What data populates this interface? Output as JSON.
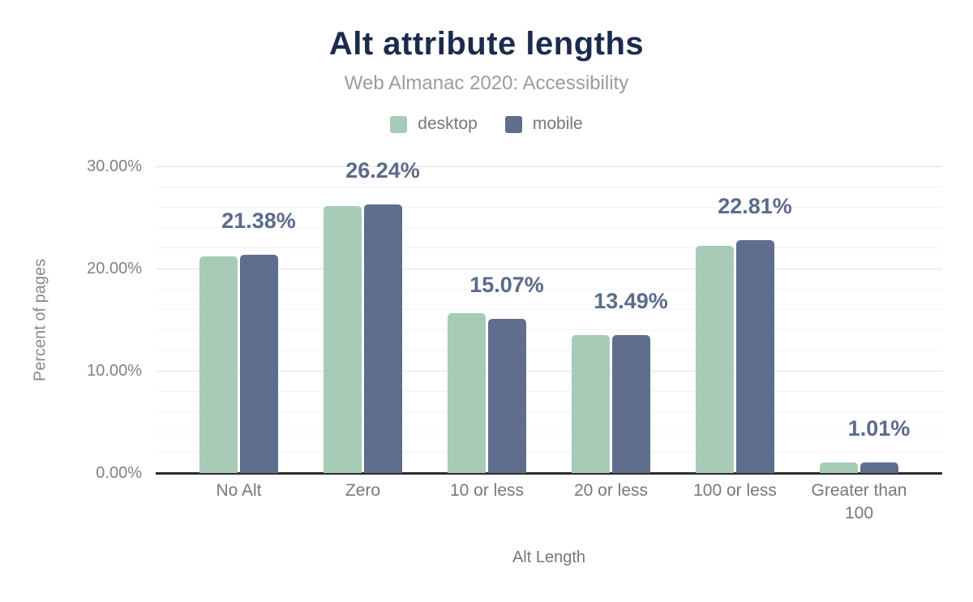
{
  "header": {
    "title": "Alt attribute lengths",
    "subtitle": "Web Almanac 2020: Accessibility"
  },
  "legend": [
    {
      "label": "desktop",
      "color": "#a8cbb8"
    },
    {
      "label": "mobile",
      "color": "#5f6e8c"
    }
  ],
  "colors": {
    "title": "#1b2b4d",
    "subtitle_text": "#989ca3",
    "axis_text": "#7d828a",
    "data_label_text": "#5a6b8b",
    "desktop_bar": "#a8cbb8",
    "mobile_bar": "#5f6e8c",
    "axis_line": "#2d2d2d",
    "major_gridline": "#e2e2e2",
    "minor_gridline": "#f3f3f3"
  },
  "chart_data": {
    "type": "bar",
    "title": "Alt attribute lengths",
    "subtitle": "Web Almanac 2020: Accessibility",
    "categories": [
      "No Alt",
      "Zero",
      "10 or less",
      "20 or less",
      "100 or less",
      "Greater than 100"
    ],
    "series": [
      {
        "name": "desktop",
        "color": "#a8cbb8",
        "values": [
          21.2,
          26.1,
          15.6,
          13.5,
          22.2,
          1.0
        ],
        "note": "values estimated from bar heights (unlabeled)"
      },
      {
        "name": "mobile",
        "color": "#5f6e8c",
        "values": [
          21.38,
          26.24,
          15.07,
          13.49,
          22.81,
          1.01
        ]
      }
    ],
    "data_labels": [
      "21.38%",
      "26.24%",
      "15.07%",
      "13.49%",
      "22.81%",
      "1.01%"
    ],
    "data_labels_series": "mobile",
    "xlabel": "Alt Length",
    "ylabel": "Percent of pages",
    "ylim": [
      0,
      30
    ],
    "yticks": [
      {
        "value": 0,
        "label": "0.00%"
      },
      {
        "value": 10,
        "label": "10.00%"
      },
      {
        "value": 20,
        "label": "20.00%"
      },
      {
        "value": 30,
        "label": "30.00%"
      }
    ],
    "grid": {
      "horizontal": true,
      "minor_step_pct": 2,
      "legend_position": "top"
    }
  }
}
